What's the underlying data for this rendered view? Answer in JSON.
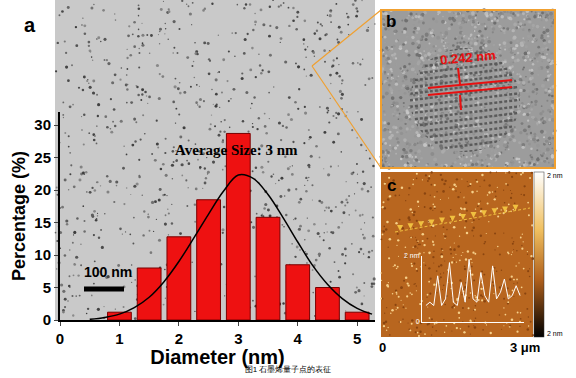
{
  "chart_data": [
    {
      "type": "bar",
      "annotation": "Average Size: 3 nm",
      "xlabel": "Diameter (nm)",
      "ylabel": "Percentage (%)",
      "series": [
        {
          "type": "bar",
          "color": "#ee1111",
          "x": [
            1,
            1.5,
            2,
            2.5,
            3,
            3.5,
            4,
            4.5,
            5
          ],
          "values": [
            1.2,
            8,
            12.8,
            18.5,
            28.7,
            15.8,
            8.5,
            5,
            1.2
          ]
        },
        {
          "type": "line",
          "color": "#000000",
          "x": [
            0.5,
            0.75,
            1,
            1.25,
            1.5,
            1.75,
            2,
            2.25,
            2.5,
            2.75,
            3,
            3.25,
            3.5,
            3.75,
            4,
            4.25,
            4.5,
            4.75,
            5,
            5.25
          ],
          "values": [
            0.1,
            0.4,
            0.9,
            1.9,
            3.5,
            5.9,
            9,
            12.6,
            16.3,
            19.8,
            22.3,
            21.8,
            19.3,
            15.8,
            12,
            8.4,
            5.5,
            3.3,
            1.8,
            0.9
          ]
        }
      ],
      "xlim": [
        0,
        5.3
      ],
      "xticks": [
        0,
        1,
        2,
        3,
        4,
        5
      ],
      "ylim": [
        0,
        32
      ],
      "yticks": [
        0,
        5,
        10,
        15,
        20,
        25,
        30
      ],
      "grid": false
    },
    {
      "type": "line",
      "color": "#ffffff",
      "x": [
        0.4,
        0.5,
        0.6,
        0.7,
        0.8,
        0.9,
        1.0,
        1.1,
        1.2,
        1.3,
        1.4,
        1.5,
        1.6,
        1.7,
        1.8,
        1.9,
        2.0,
        2.1,
        2.2,
        2.3,
        2.4,
        2.5,
        2.6,
        2.7,
        2.8
      ],
      "values": [
        0.5,
        0.6,
        0.5,
        1.4,
        0.5,
        0.7,
        1.8,
        0.6,
        0.5,
        1.2,
        0.6,
        1.9,
        0.7,
        0.6,
        1.5,
        0.8,
        0.6,
        1.7,
        0.7,
        0.9,
        1.3,
        0.7,
        0.8,
        1.1,
        0.8
      ],
      "xlim": [
        0.3,
        2.9
      ],
      "ylim": [
        0,
        2
      ],
      "yticks": [
        {
          "value": 2,
          "label": "2 nm"
        },
        0
      ],
      "tick_labels": "y",
      "grid": false
    }
  ],
  "panel_labels": [
    "a",
    "b",
    "c"
  ],
  "panel_a": {
    "scale_bar": "100 nm"
  },
  "panel_b": {
    "lattice_spacing": "0.242 nm"
  },
  "panel_c": {
    "x_start": "0",
    "x_end": "3 μm",
    "colorbar_top": "2 nm",
    "colorbar_bottom": "2 nm"
  },
  "caption": "图1 石墨烯量子点的表征"
}
